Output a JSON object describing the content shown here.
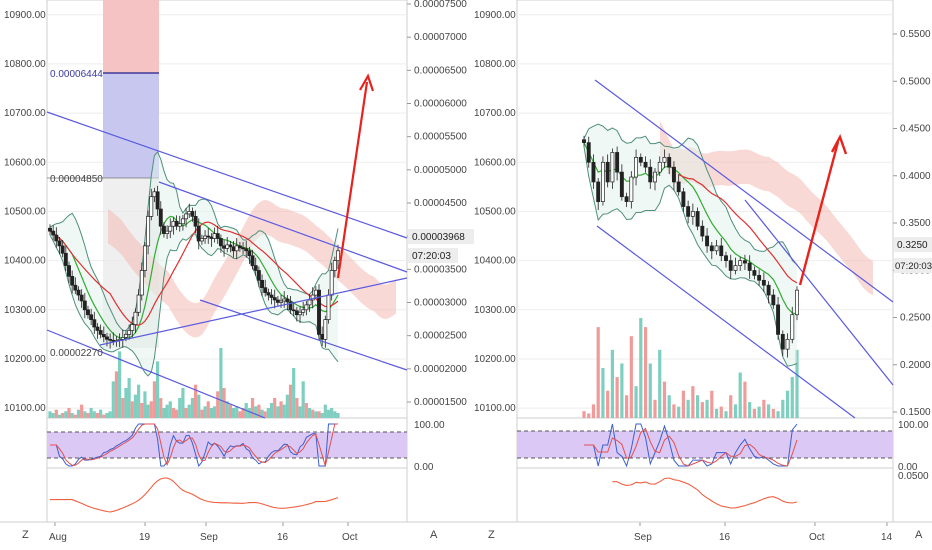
{
  "colors": {
    "up": "#2a2a2a",
    "down": "#2a2a2a",
    "vol_up": "#7fcfc0",
    "vol_down": "#f19a9a",
    "bb": "#4f8f7c",
    "ma_green": "#33aa33",
    "ma_red": "#e03030",
    "cloud": "#f4b9b3",
    "trend": "#5a5ae0",
    "arrow": "#e8221c",
    "rsi_band": "#dcc8f5",
    "pos_red": "#f5c3c3",
    "pos_blue": "#c7c7f0",
    "macd": "#f06040"
  },
  "chart_data": [
    {
      "type": "candlestick",
      "panel": "left",
      "y_left_ticks": [
        "10900.00",
        "10800.00",
        "10700.00",
        "10600.00",
        "10500.00",
        "10400.00",
        "10300.00",
        "10200.00",
        "10100.00"
      ],
      "y_left_range": [
        10080,
        10930
      ],
      "y_right_ticks": [
        "0.00007500",
        "0.00007000",
        "0.00006500",
        "0.00006000",
        "0.00005500",
        "0.00005000",
        "0.00004500",
        "0.00004000",
        "0.00003500",
        "0.00003000",
        "0.00002500",
        "0.00002000",
        "0.00001500"
      ],
      "x_ticks": [
        "Aug",
        "19",
        "Sep",
        "16",
        "Oct"
      ],
      "position_labels": [
        "0.00006444",
        "0.00004850",
        "0.00002270"
      ],
      "price_badge": "0.00003968",
      "timer_badge": "07:20:03",
      "rsi_ticks": [
        "100.00",
        "0.00"
      ],
      "close": [
        10460,
        10452,
        10440,
        10430,
        10415,
        10390,
        10368,
        10350,
        10340,
        10330,
        10318,
        10300,
        10290,
        10280,
        10265,
        10258,
        10250,
        10245,
        10240,
        10238,
        10236,
        10238,
        10240,
        10244,
        10250,
        10258,
        10270,
        10295,
        10330,
        10380,
        10430,
        10490,
        10530,
        10540,
        10505,
        10470,
        10455,
        10460,
        10470,
        10480,
        10470,
        10475,
        10485,
        10495,
        10500,
        10490,
        10470,
        10440,
        10445,
        10450,
        10448,
        10445,
        10455,
        10445,
        10430,
        10425,
        10432,
        10428,
        10420,
        10430,
        10426,
        10424,
        10420,
        10410,
        10390,
        10380,
        10360,
        10345,
        10335,
        10330,
        10325,
        10320,
        10315,
        10318,
        10322,
        10316,
        10300,
        10298,
        10290,
        10295,
        10300,
        10310,
        10320,
        10330,
        10340,
        10250,
        10240,
        10280,
        10330,
        10380,
        10400,
        10420
      ],
      "volume": [
        4,
        3,
        5,
        2,
        3,
        4,
        6,
        3,
        2,
        5,
        8,
        4,
        3,
        6,
        4,
        3,
        5,
        2,
        3,
        4,
        22,
        28,
        40,
        12,
        18,
        24,
        10,
        14,
        20,
        9,
        16,
        8,
        10,
        22,
        34,
        12,
        6,
        8,
        10,
        6,
        5,
        12,
        18,
        6,
        8,
        12,
        20,
        14,
        5,
        7,
        10,
        6,
        7,
        16,
        42,
        18,
        10,
        8,
        6,
        7,
        4,
        6,
        9,
        6,
        12,
        7,
        8,
        5,
        4,
        6,
        9,
        12,
        7,
        10,
        8,
        14,
        20,
        30,
        12,
        7,
        22,
        9,
        6,
        5,
        4,
        4,
        3,
        8,
        5,
        6,
        4,
        3
      ],
      "vol_up_flags": [
        1,
        1,
        0,
        1,
        0,
        1,
        0,
        1,
        0,
        1,
        0,
        1,
        0,
        1,
        1,
        0,
        1,
        0,
        1,
        1,
        1,
        0,
        1,
        0,
        1,
        1,
        0,
        1,
        1,
        0,
        1,
        1,
        0,
        0,
        1,
        0,
        1,
        1,
        1,
        0,
        0,
        1,
        1,
        0,
        1,
        1,
        0,
        1,
        0,
        1,
        0,
        1,
        1,
        0,
        1,
        0,
        1,
        0,
        1,
        1,
        0,
        0,
        1,
        1,
        0,
        1,
        0,
        1,
        0,
        1,
        1,
        0,
        1,
        0,
        1,
        1,
        0,
        1,
        0,
        1,
        1,
        0,
        1,
        0,
        1,
        0,
        1,
        1,
        1,
        1,
        1,
        1
      ]
    },
    {
      "type": "candlestick",
      "panel": "right",
      "y_left_ticks": [
        "10900.00",
        "10800.00",
        "10700.00",
        "10600.00",
        "10500.00",
        "10400.00",
        "10300.00",
        "10200.00",
        "10100.00"
      ],
      "y_left_range": [
        10080,
        10930
      ],
      "y_right_ticks": [
        "0.5500",
        "0.5000",
        "0.4500",
        "0.4000",
        "0.3500",
        "0.3000",
        "0.2500",
        "0.2000",
        "0.1500"
      ],
      "x_ticks": [
        "Sep",
        "16",
        "Oct",
        "14"
      ],
      "price_badge": "0.3250",
      "timer_badge": "07:20:03",
      "rsi_ticks": [
        "100.00",
        "0.00"
      ],
      "macd_tick": "0.0500",
      "close": [
        10640,
        10600,
        10560,
        10520,
        10600,
        10560,
        10620,
        10580,
        10530,
        10520,
        10570,
        10610,
        10600,
        10590,
        10560,
        10580,
        10600,
        10610,
        10590,
        10560,
        10540,
        10510,
        10490,
        10500,
        10470,
        10450,
        10430,
        10420,
        10430,
        10410,
        10400,
        10380,
        10390,
        10400,
        10395,
        10380,
        10370,
        10360,
        10350,
        10330,
        10310,
        10250,
        10220,
        10240,
        10290,
        10340
      ],
      "volume": [
        3,
        2,
        6,
        40,
        22,
        12,
        30,
        18,
        24,
        10,
        36,
        14,
        44,
        40,
        24,
        8,
        30,
        16,
        10,
        6,
        5,
        12,
        8,
        14,
        10,
        7,
        8,
        12,
        4,
        5,
        3,
        10,
        6,
        20,
        16,
        7,
        4,
        5,
        8,
        6,
        4,
        3,
        8,
        12,
        18,
        30
      ],
      "vol_up_flags": [
        0,
        0,
        0,
        0,
        1,
        0,
        1,
        0,
        1,
        0,
        0,
        1,
        1,
        0,
        1,
        0,
        1,
        0,
        1,
        0,
        1,
        0,
        1,
        0,
        1,
        0,
        1,
        0,
        1,
        0,
        1,
        0,
        1,
        1,
        0,
        1,
        0,
        1,
        0,
        1,
        0,
        1,
        1,
        1,
        1,
        1
      ]
    }
  ],
  "ui": {
    "z_label": "Z",
    "a_label": "A"
  }
}
